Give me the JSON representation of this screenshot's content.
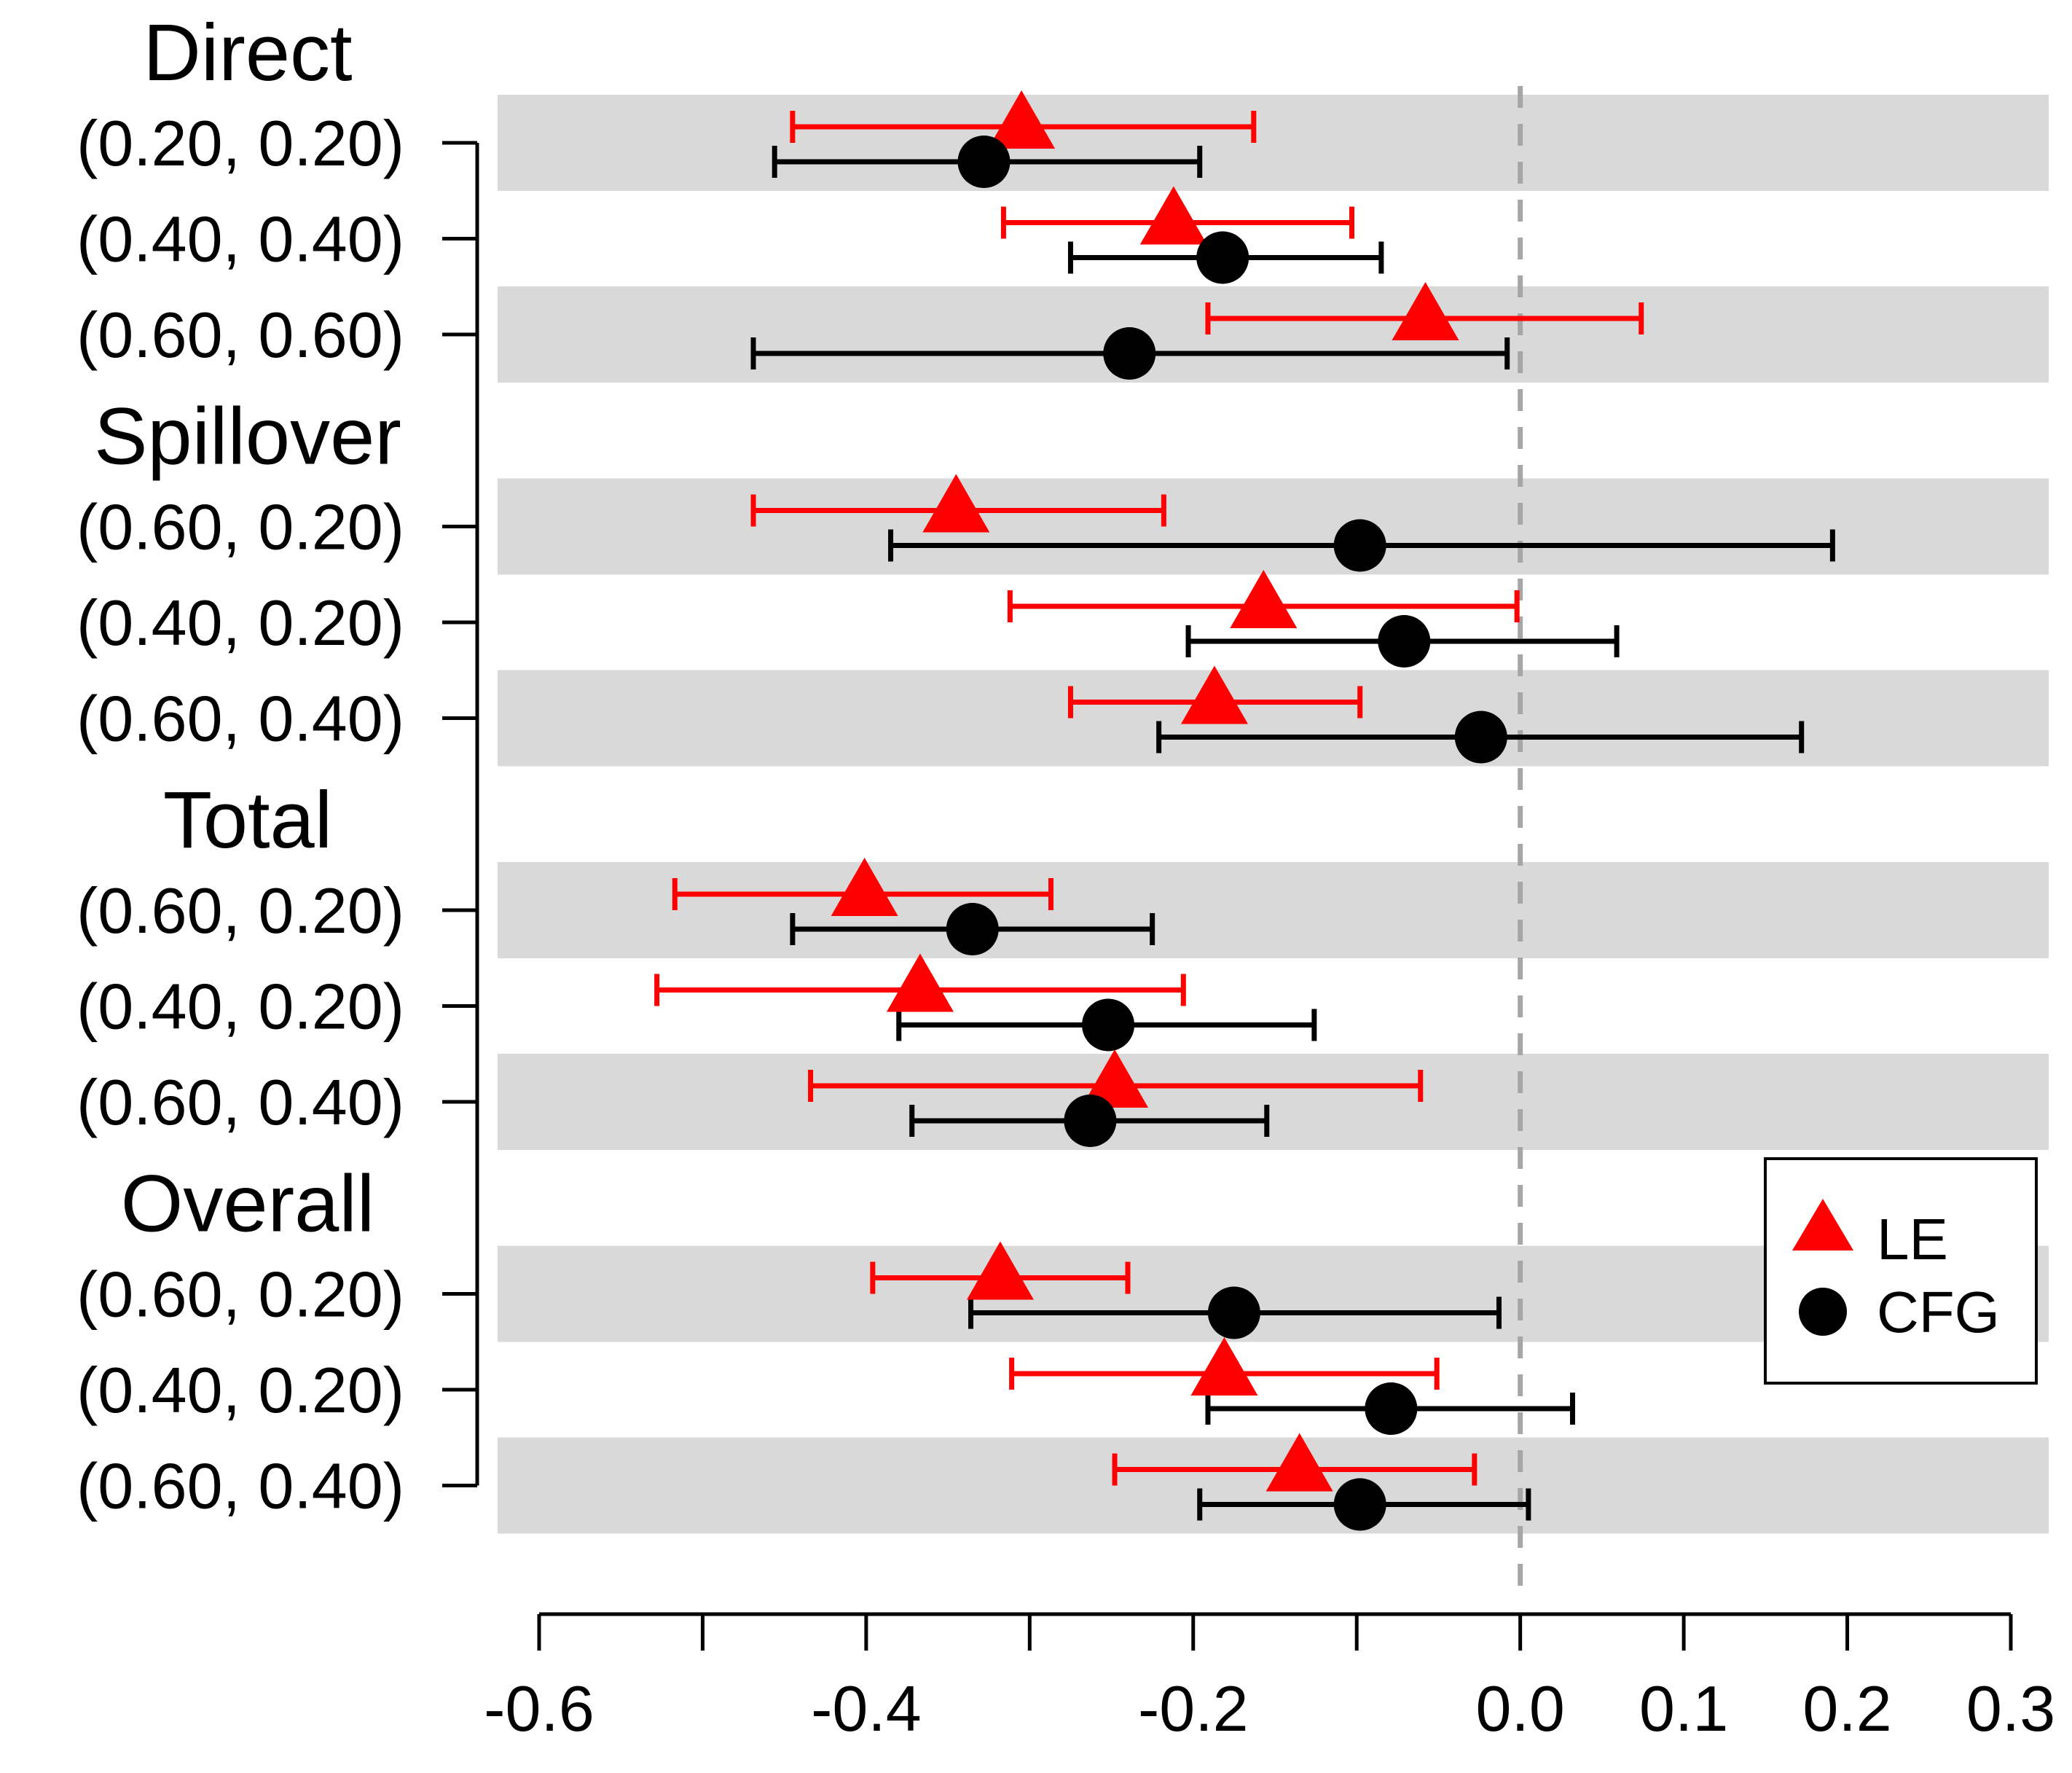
{
  "chart_data": {
    "type": "forest",
    "xlim": [
      -0.6,
      0.3
    ],
    "x_ticks": [
      -0.6,
      -0.4,
      -0.2,
      0.0,
      0.1,
      0.2,
      0.3
    ],
    "x_tick_labels": [
      "-0.6",
      "-0.4",
      "-0.2",
      "0.0",
      "0.1",
      "0.2",
      "0.3"
    ],
    "reference_line": 0.0,
    "legend": {
      "position": "bottom-right",
      "entries": [
        {
          "label": "LE",
          "marker": "triangle",
          "color": "#ff0000"
        },
        {
          "label": "CFG",
          "marker": "circle",
          "color": "#000000"
        }
      ]
    },
    "series_styles": {
      "LE": {
        "color": "#ff0000",
        "marker": "triangle"
      },
      "CFG": {
        "color": "#000000",
        "marker": "circle"
      }
    },
    "row_shading": "#d9d9d9",
    "groups": [
      {
        "title": "Direct",
        "rows": [
          {
            "label": "(0.20, 0.20)",
            "shaded": true,
            "LE": {
              "est": -0.305,
              "lo": -0.445,
              "hi": -0.163
            },
            "CFG": {
              "est": -0.328,
              "lo": -0.456,
              "hi": -0.196
            }
          },
          {
            "label": "(0.40, 0.40)",
            "shaded": false,
            "LE": {
              "est": -0.212,
              "lo": -0.316,
              "hi": -0.103
            },
            "CFG": {
              "est": -0.182,
              "lo": -0.275,
              "hi": -0.085
            }
          },
          {
            "label": "(0.60, 0.60)",
            "shaded": true,
            "LE": {
              "est": -0.058,
              "lo": -0.191,
              "hi": 0.074
            },
            "CFG": {
              "est": -0.239,
              "lo": -0.469,
              "hi": -0.008
            }
          }
        ]
      },
      {
        "title": "Spillover",
        "rows": [
          {
            "label": "(0.60, 0.20)",
            "shaded": true,
            "LE": {
              "est": -0.345,
              "lo": -0.469,
              "hi": -0.218
            },
            "CFG": {
              "est": -0.098,
              "lo": -0.385,
              "hi": 0.191
            }
          },
          {
            "label": "(0.40, 0.20)",
            "shaded": false,
            "LE": {
              "est": -0.157,
              "lo": -0.312,
              "hi": -0.002
            },
            "CFG": {
              "est": -0.071,
              "lo": -0.203,
              "hi": 0.059
            }
          },
          {
            "label": "(0.60, 0.40)",
            "shaded": true,
            "LE": {
              "est": -0.187,
              "lo": -0.275,
              "hi": -0.098
            },
            "CFG": {
              "est": -0.024,
              "lo": -0.221,
              "hi": 0.172
            }
          }
        ]
      },
      {
        "title": "Total",
        "rows": [
          {
            "label": "(0.60, 0.20)",
            "shaded": true,
            "LE": {
              "est": -0.401,
              "lo": -0.517,
              "hi": -0.287
            },
            "CFG": {
              "est": -0.335,
              "lo": -0.445,
              "hi": -0.225
            }
          },
          {
            "label": "(0.40, 0.20)",
            "shaded": false,
            "LE": {
              "est": -0.367,
              "lo": -0.528,
              "hi": -0.206
            },
            "CFG": {
              "est": -0.252,
              "lo": -0.38,
              "hi": -0.126
            }
          },
          {
            "label": "(0.60, 0.40)",
            "shaded": true,
            "LE": {
              "est": -0.248,
              "lo": -0.434,
              "hi": -0.061
            },
            "CFG": {
              "est": -0.263,
              "lo": -0.372,
              "hi": -0.155
            }
          }
        ]
      },
      {
        "title": "Overall",
        "rows": [
          {
            "label": "(0.60, 0.20)",
            "shaded": true,
            "LE": {
              "est": -0.318,
              "lo": -0.396,
              "hi": -0.24
            },
            "CFG": {
              "est": -0.175,
              "lo": -0.336,
              "hi": -0.013
            }
          },
          {
            "label": "(0.40, 0.20)",
            "shaded": false,
            "LE": {
              "est": -0.181,
              "lo": -0.311,
              "hi": -0.051
            },
            "CFG": {
              "est": -0.079,
              "lo": -0.191,
              "hi": 0.032
            }
          },
          {
            "label": "(0.60, 0.40)",
            "shaded": true,
            "LE": {
              "est": -0.135,
              "lo": -0.248,
              "hi": -0.028
            },
            "CFG": {
              "est": -0.098,
              "lo": -0.196,
              "hi": 0.005
            }
          }
        ]
      }
    ]
  }
}
